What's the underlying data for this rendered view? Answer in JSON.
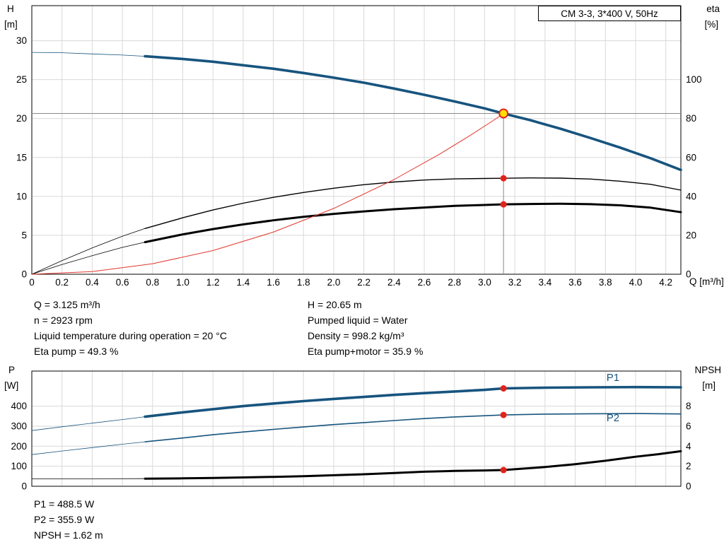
{
  "title_box": "CM 3-3, 3*400 V, 50Hz",
  "info": {
    "left": [
      "Q = 3.125 m³/h",
      "n = 2923 rpm",
      "Liquid temperature during operation = 20 °C",
      "Eta pump = 49.3 %"
    ],
    "right": [
      "H = 20.65 m",
      "Pumped liquid = Water",
      "Density = 998.2 kg/m³",
      "Eta pump+motor = 35.9 %"
    ],
    "power": [
      "P1 = 488.5 W",
      "P2 = 355.9 W",
      "NPSH = 1.62 m"
    ]
  },
  "chart_data": [
    {
      "type": "line",
      "title": "CM 3-3, 3*400 V, 50Hz",
      "x_label": "Q [m³/h]",
      "y_left_label_1": "H",
      "y_left_label_2": "[m]",
      "y_right_label_1": "eta",
      "y_right_label_2": "[%]",
      "x_range": [
        0,
        4.3
      ],
      "y_left_range": [
        0,
        34.5
      ],
      "y_right_range": [
        0,
        138
      ],
      "x_ticks": [
        "0",
        "0.2",
        "0.4",
        "0.6",
        "0.8",
        "1.0",
        "1.2",
        "1.4",
        "1.6",
        "1.8",
        "2.0",
        "2.2",
        "2.4",
        "2.6",
        "2.8",
        "3.0",
        "3.2",
        "3.4",
        "3.6",
        "3.8",
        "4.0",
        "4.2"
      ],
      "y_left_ticks": [
        "0",
        "5",
        "10",
        "15",
        "20",
        "25",
        "30"
      ],
      "y_right_ticks": [
        "0",
        "20",
        "40",
        "60",
        "80",
        "100"
      ],
      "grid_color": "#d9d9d9",
      "crosshair_color": "#8a8a8a",
      "marker_color": "#e32219",
      "duty_fill": "#ffdf00",
      "crosshair": {
        "x": 3.125,
        "y": 20.65
      },
      "series": [
        {
          "name": "head-curve",
          "axis": "left",
          "color": "#17547e",
          "width": 3.6,
          "thin_until": 0.75,
          "points": [
            [
              0,
              28.5
            ],
            [
              0.2,
              28.45
            ],
            [
              0.4,
              28.3
            ],
            [
              0.6,
              28.15
            ],
            [
              0.75,
              28.0
            ],
            [
              1.0,
              27.65
            ],
            [
              1.2,
              27.3
            ],
            [
              1.4,
              26.85
            ],
            [
              1.6,
              26.4
            ],
            [
              1.8,
              25.85
            ],
            [
              2.0,
              25.25
            ],
            [
              2.2,
              24.6
            ],
            [
              2.4,
              23.85
            ],
            [
              2.6,
              23.05
            ],
            [
              2.8,
              22.2
            ],
            [
              3.0,
              21.3
            ],
            [
              3.125,
              20.65
            ],
            [
              3.3,
              19.8
            ],
            [
              3.5,
              18.7
            ],
            [
              3.7,
              17.5
            ],
            [
              3.9,
              16.25
            ],
            [
              4.1,
              14.9
            ],
            [
              4.3,
              13.4
            ]
          ]
        },
        {
          "name": "eta-pump",
          "axis": "right",
          "color": "#000000",
          "width": 1.4,
          "thin_until": 0.75,
          "points": [
            [
              0,
              0
            ],
            [
              0.2,
              7
            ],
            [
              0.4,
              13.5
            ],
            [
              0.6,
              19.5
            ],
            [
              0.75,
              23.5
            ],
            [
              1.0,
              29
            ],
            [
              1.2,
              33
            ],
            [
              1.4,
              36.5
            ],
            [
              1.6,
              39.5
            ],
            [
              1.8,
              42
            ],
            [
              2.0,
              44.2
            ],
            [
              2.2,
              46
            ],
            [
              2.4,
              47.4
            ],
            [
              2.6,
              48.4
            ],
            [
              2.8,
              49
            ],
            [
              3.0,
              49.2
            ],
            [
              3.125,
              49.3
            ],
            [
              3.3,
              49.5
            ],
            [
              3.5,
              49.4
            ],
            [
              3.7,
              48.9
            ],
            [
              3.9,
              47.8
            ],
            [
              4.1,
              46.2
            ],
            [
              4.3,
              43.2
            ]
          ]
        },
        {
          "name": "eta-pump-motor",
          "axis": "right",
          "color": "#000000",
          "width": 3,
          "thin_until": 0.75,
          "points": [
            [
              0,
              0
            ],
            [
              0.2,
              5
            ],
            [
              0.4,
              9.5
            ],
            [
              0.6,
              13.8
            ],
            [
              0.75,
              16.5
            ],
            [
              1.0,
              20.5
            ],
            [
              1.2,
              23.2
            ],
            [
              1.4,
              25.6
            ],
            [
              1.6,
              27.7
            ],
            [
              1.8,
              29.5
            ],
            [
              2.0,
              31
            ],
            [
              2.2,
              32.3
            ],
            [
              2.4,
              33.4
            ],
            [
              2.6,
              34.3
            ],
            [
              2.8,
              35.1
            ],
            [
              3.0,
              35.6
            ],
            [
              3.125,
              35.9
            ],
            [
              3.3,
              36.1
            ],
            [
              3.5,
              36.2
            ],
            [
              3.7,
              36.0
            ],
            [
              3.9,
              35.4
            ],
            [
              4.1,
              34.2
            ],
            [
              4.3,
              31.9
            ]
          ]
        },
        {
          "name": "system-curve",
          "axis": "left",
          "color": "#e0372e",
          "width": 1,
          "points": [
            [
              0,
              0
            ],
            [
              0.4,
              0.34
            ],
            [
              0.8,
              1.35
            ],
            [
              1.2,
              3.04
            ],
            [
              1.6,
              5.41
            ],
            [
              2.0,
              8.45
            ],
            [
              2.4,
              12.17
            ],
            [
              2.7,
              15.41
            ],
            [
              2.9,
              17.78
            ],
            [
              3.05,
              19.66
            ],
            [
              3.125,
              20.65
            ]
          ]
        }
      ],
      "markers": [
        {
          "x": 3.125,
          "y": 20.65,
          "axis": "left",
          "style": "duty"
        },
        {
          "x": 3.125,
          "y": 49.3,
          "axis": "right",
          "style": "dot"
        },
        {
          "x": 3.125,
          "y": 35.9,
          "axis": "right",
          "style": "dot"
        }
      ]
    },
    {
      "type": "line",
      "title": "",
      "x_label": "",
      "y_left_label_1": "P",
      "y_left_label_2": "[W]",
      "y_right_label_1": "NPSH",
      "y_right_label_2": "[m]",
      "x_range": [
        0,
        4.3
      ],
      "y_left_range": [
        0,
        575
      ],
      "y_right_range": [
        0,
        11.5
      ],
      "x_ticks": [
        "0",
        "0.2",
        "0.4",
        "0.6",
        "0.8",
        "1.0",
        "1.2",
        "1.4",
        "1.6",
        "1.8",
        "2.0",
        "2.2",
        "2.4",
        "2.6",
        "2.8",
        "3.0",
        "3.2",
        "3.4",
        "3.6",
        "3.8",
        "4.0",
        "4.2"
      ],
      "y_left_ticks": [
        "0",
        "100",
        "200",
        "300",
        "400"
      ],
      "y_right_ticks": [
        "0",
        "2",
        "4",
        "6",
        "8"
      ],
      "grid_color": "#d9d9d9",
      "crosshair_color": "#8a8a8a",
      "marker_color": "#e32219",
      "duty_fill": "#ffdf00",
      "series": [
        {
          "name": "p1-curve",
          "axis": "left",
          "color": "#17547e",
          "width": 3.6,
          "thin_until": 0.75,
          "label": "P1",
          "label_at": [
            3.85,
            525
          ],
          "points": [
            [
              0,
              278
            ],
            [
              0.2,
              297
            ],
            [
              0.4,
              315
            ],
            [
              0.6,
              333
            ],
            [
              0.75,
              347
            ],
            [
              1.0,
              369
            ],
            [
              1.2,
              385
            ],
            [
              1.4,
              400
            ],
            [
              1.6,
              413
            ],
            [
              1.8,
              425
            ],
            [
              2.0,
              436
            ],
            [
              2.2,
              446
            ],
            [
              2.4,
              456
            ],
            [
              2.6,
              465
            ],
            [
              2.8,
              473
            ],
            [
              3.0,
              481
            ],
            [
              3.125,
              488.5
            ],
            [
              3.4,
              492
            ],
            [
              3.7,
              494
            ],
            [
              4.0,
              495
            ],
            [
              4.3,
              494
            ]
          ]
        },
        {
          "name": "p2-curve",
          "axis": "left",
          "color": "#17547e",
          "width": 1.6,
          "thin_until": 0.75,
          "label": "P2",
          "label_at": [
            3.85,
            325
          ],
          "points": [
            [
              0,
              158
            ],
            [
              0.2,
              176
            ],
            [
              0.4,
              193
            ],
            [
              0.6,
              210
            ],
            [
              0.75,
              222
            ],
            [
              1.0,
              241
            ],
            [
              1.2,
              257
            ],
            [
              1.4,
              271
            ],
            [
              1.6,
              284
            ],
            [
              1.8,
              296
            ],
            [
              2.0,
              308
            ],
            [
              2.2,
              318
            ],
            [
              2.4,
              328
            ],
            [
              2.6,
              338
            ],
            [
              2.8,
              346
            ],
            [
              3.0,
              352
            ],
            [
              3.125,
              355.9
            ],
            [
              3.4,
              360
            ],
            [
              3.7,
              362
            ],
            [
              4.0,
              363
            ],
            [
              4.3,
              361
            ]
          ]
        },
        {
          "name": "npsh-curve",
          "axis": "right",
          "color": "#000000",
          "width": 3,
          "thin_until": 0.75,
          "points": [
            [
              0,
              0.75
            ],
            [
              0.4,
              0.75
            ],
            [
              0.75,
              0.76
            ],
            [
              1.0,
              0.79
            ],
            [
              1.2,
              0.83
            ],
            [
              1.4,
              0.88
            ],
            [
              1.6,
              0.94
            ],
            [
              1.8,
              1.01
            ],
            [
              2.0,
              1.1
            ],
            [
              2.2,
              1.2
            ],
            [
              2.4,
              1.32
            ],
            [
              2.6,
              1.45
            ],
            [
              2.8,
              1.53
            ],
            [
              3.0,
              1.58
            ],
            [
              3.125,
              1.62
            ],
            [
              3.4,
              1.92
            ],
            [
              3.6,
              2.2
            ],
            [
              3.8,
              2.55
            ],
            [
              4.0,
              2.95
            ],
            [
              4.15,
              3.2
            ],
            [
              4.3,
              3.5
            ]
          ]
        }
      ],
      "markers": [
        {
          "x": 3.125,
          "y": 488.5,
          "axis": "left",
          "style": "dot"
        },
        {
          "x": 3.125,
          "y": 355.9,
          "axis": "left",
          "style": "dot"
        },
        {
          "x": 3.125,
          "y": 1.62,
          "axis": "right",
          "style": "dot"
        }
      ]
    }
  ]
}
